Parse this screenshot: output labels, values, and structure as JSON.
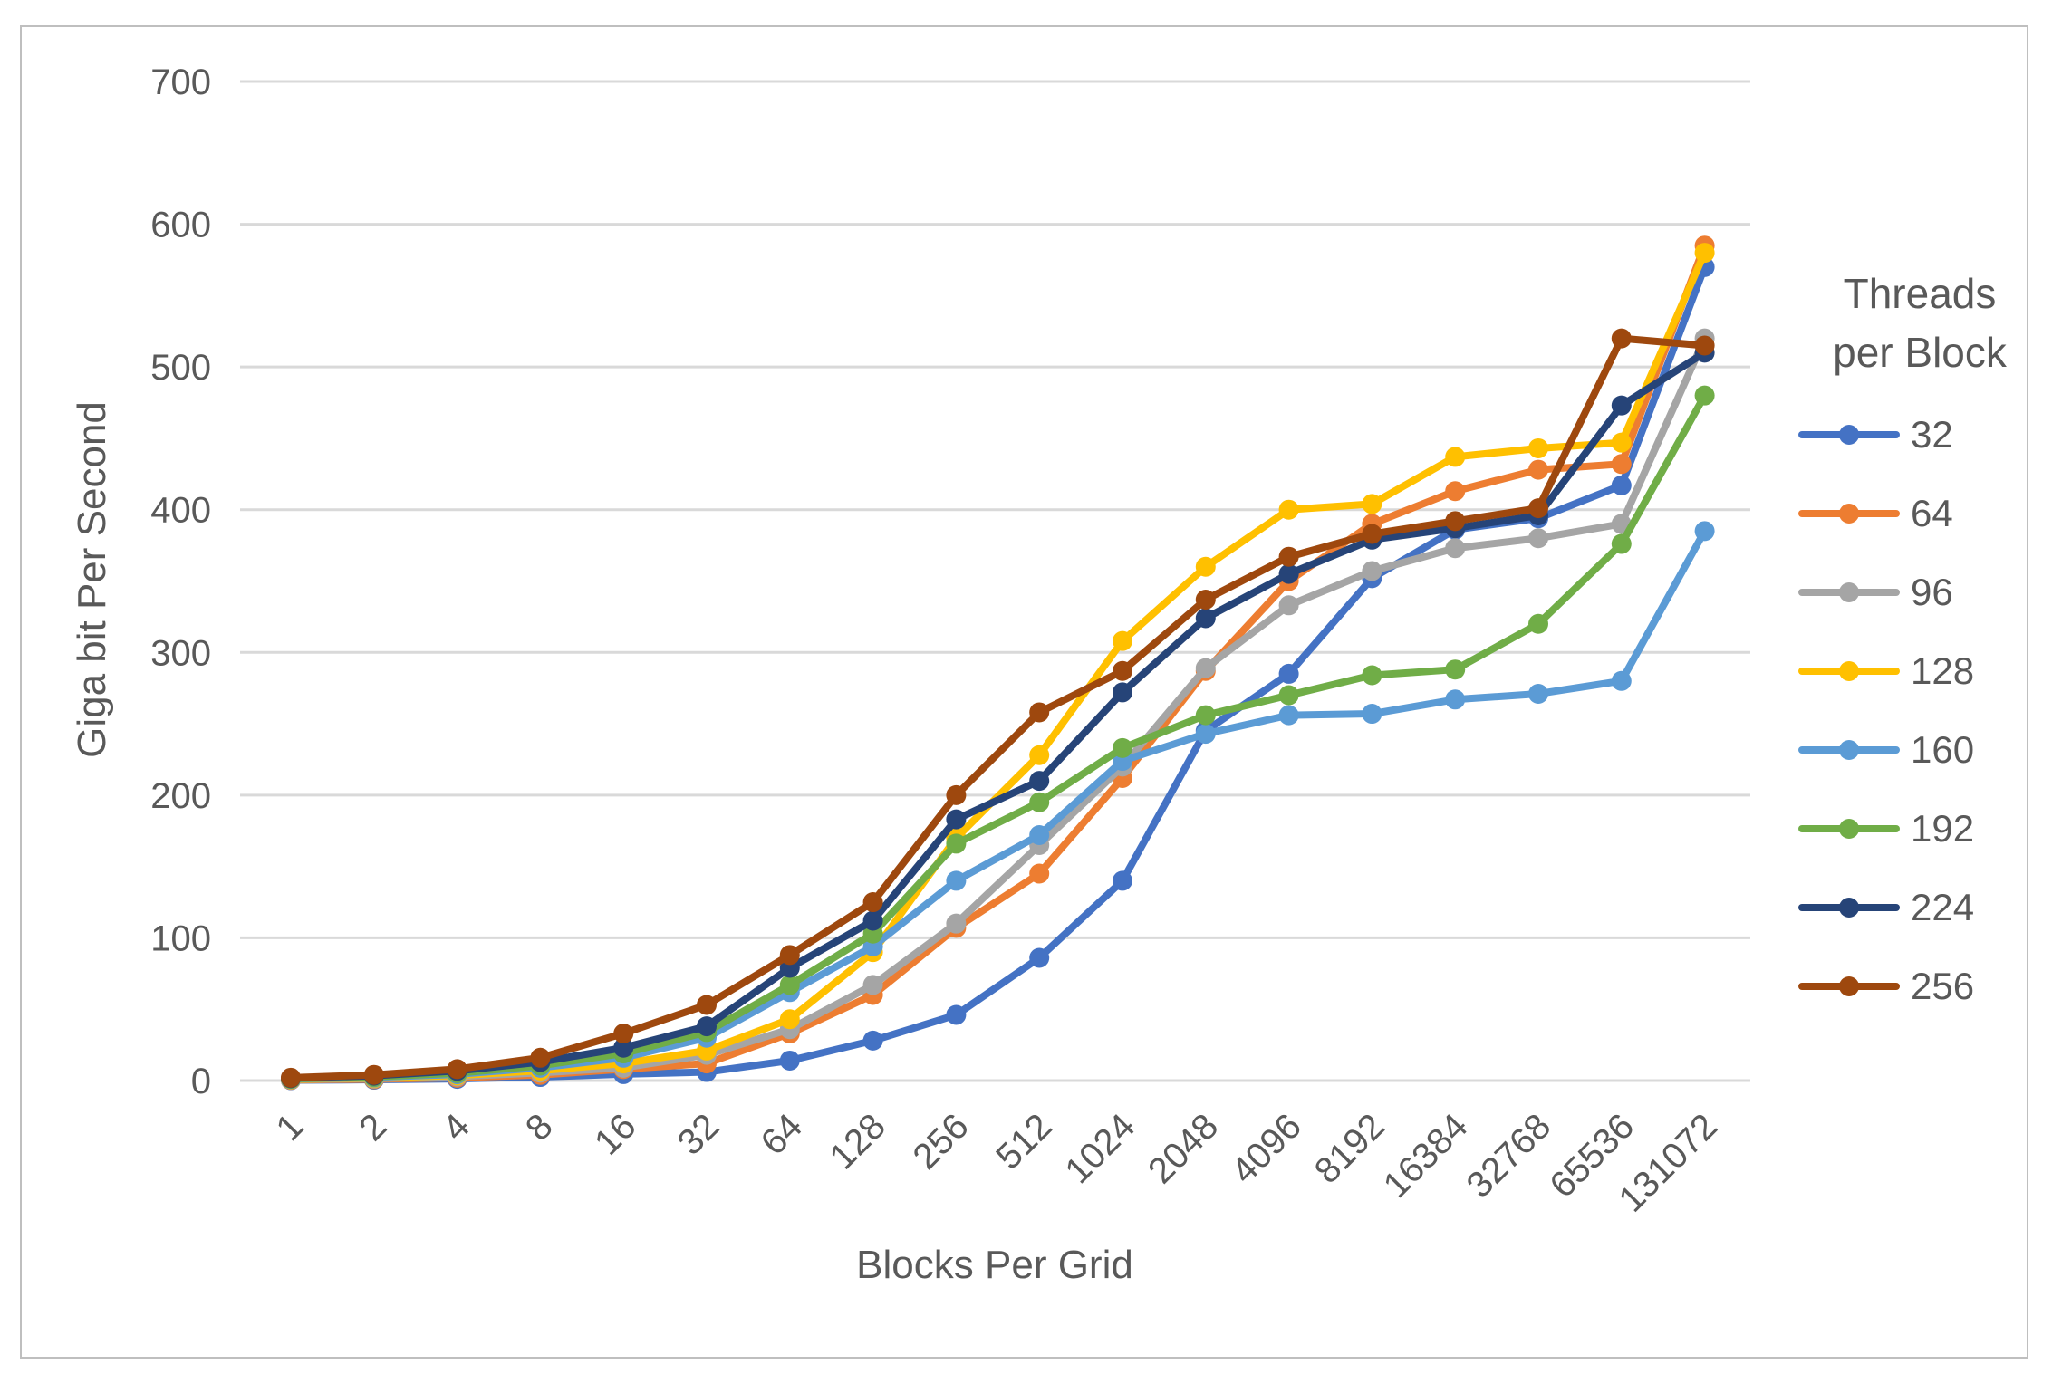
{
  "chart_data": {
    "type": "line",
    "title": "",
    "xlabel": "Blocks Per Grid",
    "ylabel": "Giga bit Per Second",
    "legend_title_line1": "Threads",
    "legend_title_line2": "per Block",
    "legend_position": "right",
    "grid": "horizontal",
    "ylim": [
      0,
      700
    ],
    "yticks": [
      0,
      100,
      200,
      300,
      400,
      500,
      600,
      700
    ],
    "categories": [
      "1",
      "2",
      "4",
      "8",
      "16",
      "32",
      "64",
      "128",
      "256",
      "512",
      "1024",
      "2048",
      "4096",
      "8192",
      "16384",
      "32768",
      "65536",
      "131072"
    ],
    "series": [
      {
        "name": "32",
        "color": "#4472C4",
        "values": [
          0.3,
          0.6,
          1.2,
          2.5,
          4.5,
          6,
          14,
          28,
          46,
          86,
          140,
          245,
          285,
          352,
          386,
          394,
          417,
          570
        ]
      },
      {
        "name": "64",
        "color": "#ED7D31",
        "values": [
          0.5,
          1,
          2,
          4,
          8,
          12,
          33,
          60,
          107,
          145,
          212,
          287,
          350,
          390,
          413,
          428,
          432,
          585
        ]
      },
      {
        "name": "96",
        "color": "#A5A5A5",
        "values": [
          0.7,
          1.4,
          2.8,
          5.5,
          9,
          18,
          36,
          67,
          110,
          165,
          220,
          289,
          333,
          357,
          373,
          380,
          390,
          520
        ]
      },
      {
        "name": "128",
        "color": "#FFC000",
        "values": [
          0.9,
          1.8,
          3.6,
          7,
          12,
          21,
          43,
          90,
          170,
          228,
          308,
          360,
          400,
          404,
          437,
          443,
          447,
          580
        ]
      },
      {
        "name": "160",
        "color": "#5B9BD5",
        "values": [
          1.1,
          2.2,
          4.4,
          9,
          16,
          30,
          62,
          94,
          140,
          172,
          224,
          243,
          256,
          257,
          267,
          271,
          280,
          385
        ]
      },
      {
        "name": "192",
        "color": "#70AD47",
        "values": [
          1.3,
          2.6,
          5.2,
          10.5,
          19,
          34,
          67,
          103,
          166,
          195,
          233,
          256,
          270,
          284,
          288,
          320,
          376,
          480
        ]
      },
      {
        "name": "224",
        "color": "#264478",
        "values": [
          1.7,
          3.4,
          6.8,
          13,
          23,
          38,
          79,
          112,
          183,
          210,
          272,
          324,
          355,
          379,
          387,
          396,
          473,
          510
        ]
      },
      {
        "name": "256",
        "color": "#9E480E",
        "values": [
          2,
          4,
          8,
          16,
          33,
          53,
          88,
          125,
          200,
          258,
          287,
          337,
          367,
          383,
          392,
          401,
          520,
          515
        ]
      }
    ]
  },
  "colors": {
    "text": "#595959",
    "gridline": "#D9D9D9",
    "border": "#BFBFBF",
    "background": "#FFFFFF"
  }
}
